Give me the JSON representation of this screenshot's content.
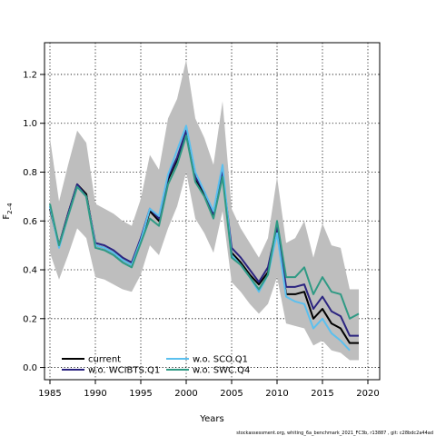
{
  "chart_data": {
    "type": "line",
    "xlabel": "Years",
    "ylabel": "F",
    "ylabel_sub": "2–4",
    "xlim": [
      1984.4,
      2021.3
    ],
    "ylim": [
      -0.05,
      1.33
    ],
    "x_ticks": [
      1985,
      1990,
      1995,
      2000,
      2005,
      2010,
      2015,
      2020
    ],
    "y_ticks": [
      0.0,
      0.2,
      0.4,
      0.6,
      0.8,
      1.0,
      1.2
    ],
    "grid": true,
    "legend_position": "bottom-left",
    "footer": "stockassessment.org, whiting_6a_benchmark_2021_FC3b, r13887 , git: c28bdc2a44ad",
    "x": [
      1985,
      1986,
      1987,
      1988,
      1989,
      1990,
      1991,
      1992,
      1993,
      1994,
      1995,
      1996,
      1997,
      1998,
      1999,
      2000,
      2001,
      2002,
      2003,
      2004,
      2005,
      2006,
      2007,
      2008,
      2009,
      2010,
      2011,
      2012,
      2013,
      2014,
      2015,
      2016,
      2017,
      2018,
      2019
    ],
    "band": {
      "color": "#bebebe",
      "upper": [
        0.94,
        0.68,
        0.83,
        0.97,
        0.92,
        0.67,
        0.65,
        0.63,
        0.6,
        0.58,
        0.69,
        0.87,
        0.81,
        1.02,
        1.1,
        1.26,
        1.02,
        0.94,
        0.83,
        1.09,
        0.65,
        0.57,
        0.51,
        0.45,
        0.53,
        0.78,
        0.51,
        0.53,
        0.6,
        0.45,
        0.59,
        0.5,
        0.49,
        0.32,
        0.32
      ],
      "lower": [
        0.47,
        0.36,
        0.46,
        0.57,
        0.53,
        0.37,
        0.36,
        0.34,
        0.32,
        0.31,
        0.38,
        0.5,
        0.46,
        0.57,
        0.66,
        0.8,
        0.61,
        0.55,
        0.47,
        0.64,
        0.35,
        0.31,
        0.26,
        0.22,
        0.26,
        0.37,
        0.18,
        0.17,
        0.16,
        0.09,
        0.11,
        0.07,
        0.06,
        0.03,
        0.03
      ]
    },
    "series": [
      {
        "name": "current",
        "color": "#000000",
        "dash": "",
        "values": [
          0.65,
          0.5,
          0.63,
          0.75,
          0.71,
          0.5,
          0.49,
          0.47,
          0.44,
          0.42,
          0.52,
          0.64,
          0.6,
          0.77,
          0.85,
          0.96,
          0.77,
          0.71,
          0.62,
          0.79,
          0.47,
          0.43,
          0.38,
          0.34,
          0.39,
          0.56,
          0.3,
          0.3,
          0.31,
          0.2,
          0.24,
          0.18,
          0.16,
          0.1,
          0.1
        ]
      },
      {
        "name": "w.o. WCIBTS.Q1",
        "color": "#2b2480",
        "dash": "",
        "values": [
          0.66,
          0.5,
          0.63,
          0.75,
          0.7,
          0.51,
          0.5,
          0.48,
          0.45,
          0.43,
          0.53,
          0.65,
          0.61,
          0.78,
          0.86,
          0.97,
          0.78,
          0.72,
          0.63,
          0.8,
          0.49,
          0.45,
          0.4,
          0.35,
          0.41,
          0.58,
          0.33,
          0.33,
          0.34,
          0.24,
          0.29,
          0.23,
          0.21,
          0.13,
          0.13
        ]
      },
      {
        "name": "w.o. SCO.Q1",
        "color": "#5bc0ef",
        "dash": "",
        "values": [
          0.66,
          0.49,
          0.62,
          0.74,
          0.7,
          0.5,
          0.49,
          0.47,
          0.44,
          0.42,
          0.52,
          0.65,
          0.62,
          0.79,
          0.89,
          0.99,
          0.8,
          0.72,
          0.64,
          0.83,
          0.46,
          0.42,
          0.37,
          0.31,
          0.38,
          0.55,
          0.29,
          0.27,
          0.26,
          0.16,
          0.2,
          0.14,
          0.11,
          0.07,
          null
        ]
      },
      {
        "name": "w.o. SWC.Q4",
        "color": "#2f9a84",
        "dash": "",
        "values": [
          0.67,
          0.5,
          0.62,
          0.74,
          0.7,
          0.49,
          0.48,
          0.46,
          0.43,
          0.41,
          0.51,
          0.61,
          0.58,
          0.75,
          0.83,
          0.95,
          0.76,
          0.7,
          0.61,
          0.78,
          0.45,
          0.42,
          0.37,
          0.32,
          0.38,
          0.6,
          0.37,
          0.37,
          0.41,
          0.3,
          0.37,
          0.31,
          0.3,
          0.2,
          0.22
        ]
      }
    ]
  }
}
